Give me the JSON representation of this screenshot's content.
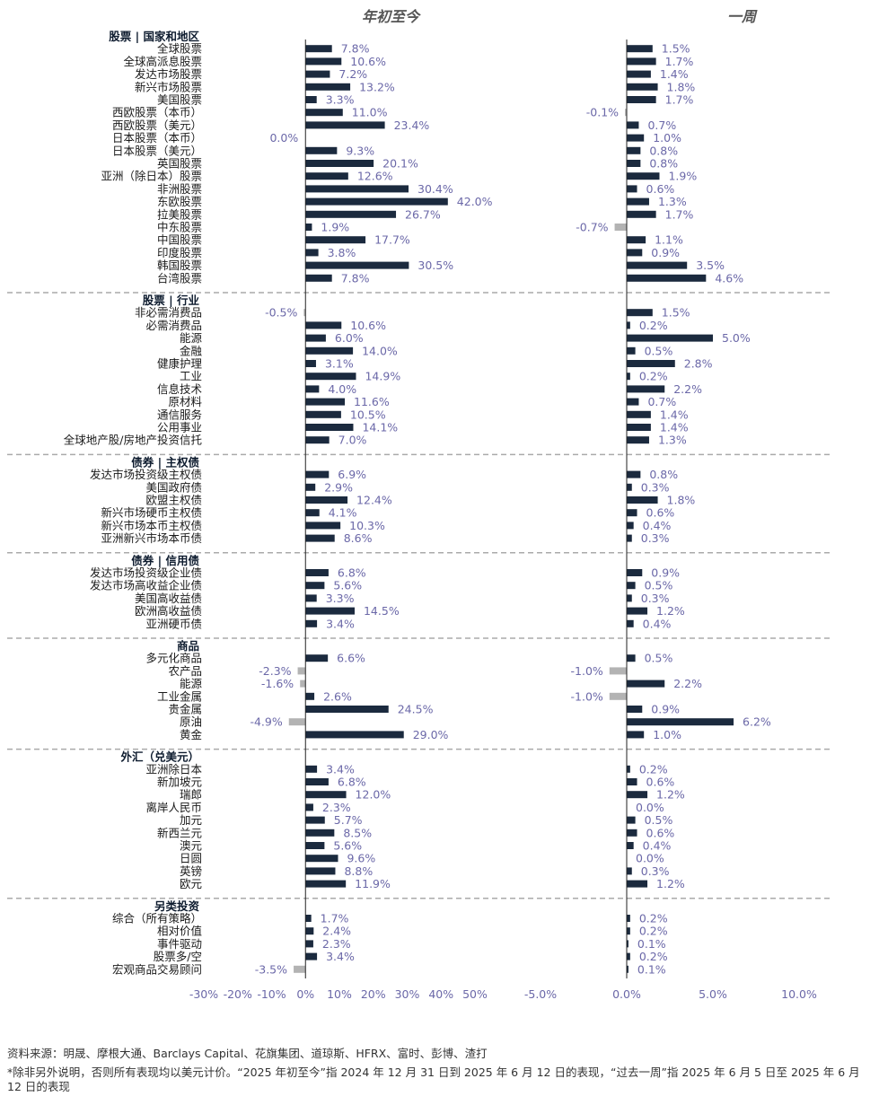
{
  "chart_data": {
    "type": "bar",
    "orientation": "horizontal",
    "panels": [
      {
        "title": "年初至今",
        "xlim": [
          -30,
          50
        ],
        "ticks": [
          -30,
          -20,
          -10,
          0,
          10,
          20,
          30,
          40,
          50
        ],
        "tick_labels": [
          "-30%",
          "-20%",
          "-10%",
          "0%",
          "10%",
          "20%",
          "30%",
          "40%",
          "50%"
        ]
      },
      {
        "title": "一周",
        "xlim": [
          -5,
          10
        ],
        "ticks": [
          -5,
          0,
          5,
          10
        ],
        "tick_labels": [
          "-5.0%",
          "0.0%",
          "5.0%",
          "10.0%"
        ]
      }
    ],
    "colors": {
      "positive": "#1b2a3e",
      "negative": "#b3b3b3",
      "label": "#6b68a8",
      "text": "#1a1a1a"
    },
    "groups": [
      {
        "name": "股票 | 国家和地区",
        "items": [
          {
            "label": "全球股票",
            "ytd": 7.8,
            "ytd_label": "7.8%",
            "week": 1.5,
            "week_label": "1.5%"
          },
          {
            "label": "全球高派息股票",
            "ytd": 10.6,
            "ytd_label": "10.6%",
            "week": 1.7,
            "week_label": "1.7%"
          },
          {
            "label": "发达市场股票",
            "ytd": 7.2,
            "ytd_label": "7.2%",
            "week": 1.4,
            "week_label": "1.4%"
          },
          {
            "label": "新兴市场股票",
            "ytd": 13.2,
            "ytd_label": "13.2%",
            "week": 1.8,
            "week_label": "1.8%"
          },
          {
            "label": "美国股票",
            "ytd": 3.3,
            "ytd_label": "3.3%",
            "week": 1.7,
            "week_label": "1.7%"
          },
          {
            "label": "西欧股票（本币）",
            "ytd": 11.0,
            "ytd_label": "11.0%",
            "week": -0.1,
            "week_label": "-0.1%"
          },
          {
            "label": "西欧股票（美元）",
            "ytd": 23.4,
            "ytd_label": "23.4%",
            "week": 0.7,
            "week_label": "0.7%"
          },
          {
            "label": "日本股票（本币）",
            "ytd": 0.0,
            "ytd_label": "0.0%",
            "week": 1.0,
            "week_label": "1.0%"
          },
          {
            "label": "日本股票（美元）",
            "ytd": 9.3,
            "ytd_label": "9.3%",
            "week": 0.8,
            "week_label": "0.8%"
          },
          {
            "label": "英国股票",
            "ytd": 20.1,
            "ytd_label": "20.1%",
            "week": 0.8,
            "week_label": "0.8%"
          },
          {
            "label": "亚洲（除日本）股票",
            "ytd": 12.6,
            "ytd_label": "12.6%",
            "week": 1.9,
            "week_label": "1.9%"
          },
          {
            "label": "非洲股票",
            "ytd": 30.4,
            "ytd_label": "30.4%",
            "week": 0.6,
            "week_label": "0.6%"
          },
          {
            "label": "东欧股票",
            "ytd": 42.0,
            "ytd_label": "42.0%",
            "week": 1.3,
            "week_label": "1.3%"
          },
          {
            "label": "拉美股票",
            "ytd": 26.7,
            "ytd_label": "26.7%",
            "week": 1.7,
            "week_label": "1.7%"
          },
          {
            "label": "中东股票",
            "ytd": 1.9,
            "ytd_label": "1.9%",
            "week": -0.7,
            "week_label": "-0.7%"
          },
          {
            "label": "中国股票",
            "ytd": 17.7,
            "ytd_label": "17.7%",
            "week": 1.1,
            "week_label": "1.1%"
          },
          {
            "label": "印度股票",
            "ytd": 3.8,
            "ytd_label": "3.8%",
            "week": 0.9,
            "week_label": "0.9%"
          },
          {
            "label": "韩国股票",
            "ytd": 30.5,
            "ytd_label": "30.5%",
            "week": 3.5,
            "week_label": "3.5%"
          },
          {
            "label": "台湾股票",
            "ytd": 7.8,
            "ytd_label": "7.8%",
            "week": 4.6,
            "week_label": "4.6%"
          }
        ]
      },
      {
        "name": "股票 | 行业",
        "items": [
          {
            "label": "非必需消费品",
            "ytd": -0.5,
            "ytd_label": "-0.5%",
            "week": 1.5,
            "week_label": "1.5%"
          },
          {
            "label": "必需消费品",
            "ytd": 10.6,
            "ytd_label": "10.6%",
            "week": 0.2,
            "week_label": "0.2%"
          },
          {
            "label": "能源",
            "ytd": 6.0,
            "ytd_label": "6.0%",
            "week": 5.0,
            "week_label": "5.0%"
          },
          {
            "label": "金融",
            "ytd": 14.0,
            "ytd_label": "14.0%",
            "week": 0.5,
            "week_label": "0.5%"
          },
          {
            "label": "健康护理",
            "ytd": 3.1,
            "ytd_label": "3.1%",
            "week": 2.8,
            "week_label": "2.8%"
          },
          {
            "label": "工业",
            "ytd": 14.9,
            "ytd_label": "14.9%",
            "week": 0.2,
            "week_label": "0.2%"
          },
          {
            "label": "信息技术",
            "ytd": 4.0,
            "ytd_label": "4.0%",
            "week": 2.2,
            "week_label": "2.2%"
          },
          {
            "label": "原材料",
            "ytd": 11.6,
            "ytd_label": "11.6%",
            "week": 0.7,
            "week_label": "0.7%"
          },
          {
            "label": "通信服务",
            "ytd": 10.5,
            "ytd_label": "10.5%",
            "week": 1.4,
            "week_label": "1.4%"
          },
          {
            "label": "公用事业",
            "ytd": 14.1,
            "ytd_label": "14.1%",
            "week": 1.4,
            "week_label": "1.4%"
          },
          {
            "label": "全球地产股/房地产投资信托",
            "ytd": 7.0,
            "ytd_label": "7.0%",
            "week": 1.3,
            "week_label": "1.3%"
          }
        ]
      },
      {
        "name": "债券 | 主权债",
        "items": [
          {
            "label": "发达市场投资级主权债",
            "ytd": 6.9,
            "ytd_label": "6.9%",
            "week": 0.8,
            "week_label": "0.8%"
          },
          {
            "label": "美国政府债",
            "ytd": 2.9,
            "ytd_label": "2.9%",
            "week": 0.3,
            "week_label": "0.3%"
          },
          {
            "label": "欧盟主权债",
            "ytd": 12.4,
            "ytd_label": "12.4%",
            "week": 1.8,
            "week_label": "1.8%"
          },
          {
            "label": "新兴市场硬币主权债",
            "ytd": 4.1,
            "ytd_label": "4.1%",
            "week": 0.6,
            "week_label": "0.6%"
          },
          {
            "label": "新兴市场本币主权债",
            "ytd": 10.3,
            "ytd_label": "10.3%",
            "week": 0.4,
            "week_label": "0.4%"
          },
          {
            "label": "亚洲新兴市场本币债",
            "ytd": 8.6,
            "ytd_label": "8.6%",
            "week": 0.3,
            "week_label": "0.3%"
          }
        ]
      },
      {
        "name": "债券 | 信用债",
        "items": [
          {
            "label": "发达市场投资级企业债",
            "ytd": 6.8,
            "ytd_label": "6.8%",
            "week": 0.9,
            "week_label": "0.9%"
          },
          {
            "label": "发达市场高收益企业债",
            "ytd": 5.6,
            "ytd_label": "5.6%",
            "week": 0.5,
            "week_label": "0.5%"
          },
          {
            "label": "美国高收益债",
            "ytd": 3.3,
            "ytd_label": "3.3%",
            "week": 0.3,
            "week_label": "0.3%"
          },
          {
            "label": "欧洲高收益债",
            "ytd": 14.5,
            "ytd_label": "14.5%",
            "week": 1.2,
            "week_label": "1.2%"
          },
          {
            "label": "亚洲硬币债",
            "ytd": 3.4,
            "ytd_label": "3.4%",
            "week": 0.4,
            "week_label": "0.4%"
          }
        ]
      },
      {
        "name": "商品",
        "items": [
          {
            "label": "多元化商品",
            "ytd": 6.6,
            "ytd_label": "6.6%",
            "week": 0.5,
            "week_label": "0.5%"
          },
          {
            "label": "农产品",
            "ytd": -2.3,
            "ytd_label": "-2.3%",
            "week": -1.0,
            "week_label": "-1.0%"
          },
          {
            "label": "能源",
            "ytd": -1.6,
            "ytd_label": "-1.6%",
            "week": 2.2,
            "week_label": "2.2%"
          },
          {
            "label": "工业金属",
            "ytd": 2.6,
            "ytd_label": "2.6%",
            "week": -1.0,
            "week_label": "-1.0%"
          },
          {
            "label": "贵金属",
            "ytd": 24.5,
            "ytd_label": "24.5%",
            "week": 0.9,
            "week_label": "0.9%"
          },
          {
            "label": "原油",
            "ytd": -4.9,
            "ytd_label": "-4.9%",
            "week": 6.2,
            "week_label": "6.2%"
          },
          {
            "label": "黄金",
            "ytd": 29.0,
            "ytd_label": "29.0%",
            "week": 1.0,
            "week_label": "1.0%"
          }
        ]
      },
      {
        "name": "外汇（兑美元）",
        "items": [
          {
            "label": "亚洲除日本",
            "ytd": 3.4,
            "ytd_label": "3.4%",
            "week": 0.2,
            "week_label": "0.2%"
          },
          {
            "label": "新加坡元",
            "ytd": 6.8,
            "ytd_label": "6.8%",
            "week": 0.6,
            "week_label": "0.6%"
          },
          {
            "label": "瑞郎",
            "ytd": 12.0,
            "ytd_label": "12.0%",
            "week": 1.2,
            "week_label": "1.2%"
          },
          {
            "label": "离岸人民币",
            "ytd": 2.3,
            "ytd_label": "2.3%",
            "week": 0.0,
            "week_label": "0.0%"
          },
          {
            "label": "加元",
            "ytd": 5.7,
            "ytd_label": "5.7%",
            "week": 0.5,
            "week_label": "0.5%"
          },
          {
            "label": "新西兰元",
            "ytd": 8.5,
            "ytd_label": "8.5%",
            "week": 0.6,
            "week_label": "0.6%"
          },
          {
            "label": "澳元",
            "ytd": 5.6,
            "ytd_label": "5.6%",
            "week": 0.4,
            "week_label": "0.4%"
          },
          {
            "label": "日圆",
            "ytd": 9.6,
            "ytd_label": "9.6%",
            "week": 0.0,
            "week_label": "0.0%"
          },
          {
            "label": "英镑",
            "ytd": 8.8,
            "ytd_label": "8.8%",
            "week": 0.3,
            "week_label": "0.3%"
          },
          {
            "label": "欧元",
            "ytd": 11.9,
            "ytd_label": "11.9%",
            "week": 1.2,
            "week_label": "1.2%"
          }
        ]
      },
      {
        "name": "另类投资",
        "items": [
          {
            "label": "综合（所有策略）",
            "ytd": 1.7,
            "ytd_label": "1.7%",
            "week": 0.2,
            "week_label": "0.2%"
          },
          {
            "label": "相对价值",
            "ytd": 2.4,
            "ytd_label": "2.4%",
            "week": 0.2,
            "week_label": "0.2%"
          },
          {
            "label": "事件驱动",
            "ytd": 2.3,
            "ytd_label": "2.3%",
            "week": 0.1,
            "week_label": "0.1%"
          },
          {
            "label": "股票多/空",
            "ytd": 3.4,
            "ytd_label": "3.4%",
            "week": 0.2,
            "week_label": "0.2%"
          },
          {
            "label": "宏观商品交易顾问",
            "ytd": -3.5,
            "ytd_label": "-3.5%",
            "week": 0.1,
            "week_label": "0.1%"
          }
        ]
      }
    ]
  },
  "footer": {
    "source": "资料来源：明晟、摩根大通、Barclays Capital、花旗集团、道琼斯、HFRX、富时、彭博、渣打",
    "note": "*除非另外说明，否则所有表现均以美元计价。“2025 年初至今”指 2024 年 12 月 31 日到 2025 年 6 月 12 日的表现，“过去一周”指 2025 年 6 月 5 日至 2025 年 6 月 12 日的表现"
  }
}
